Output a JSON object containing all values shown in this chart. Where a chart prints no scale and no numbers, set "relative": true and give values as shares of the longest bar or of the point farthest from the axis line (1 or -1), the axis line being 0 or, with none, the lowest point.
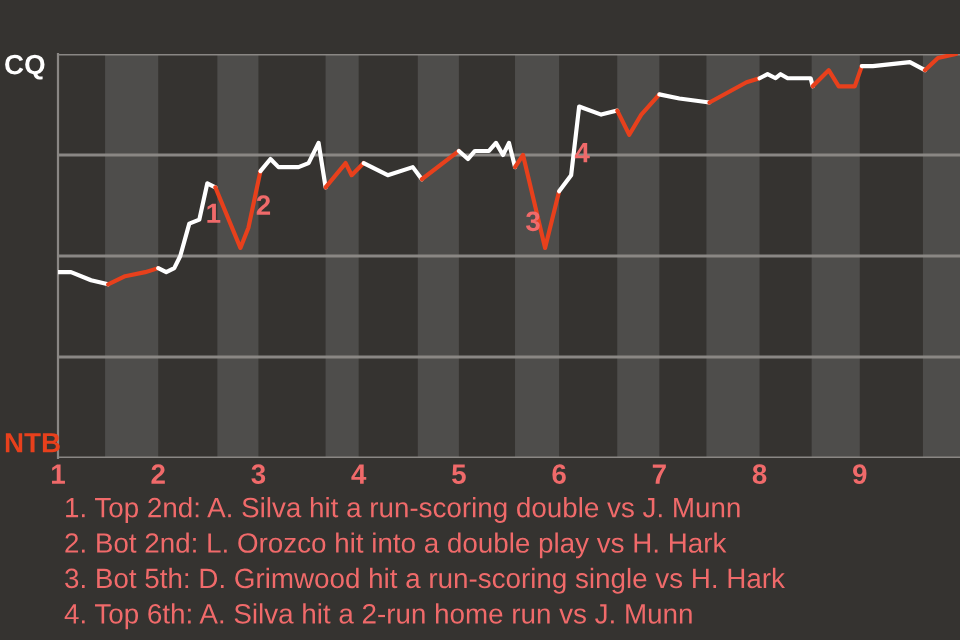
{
  "chart_data": {
    "type": "line",
    "relative": true,
    "xlim": [
      1,
      10
    ],
    "xticks": [
      1,
      2,
      3,
      4,
      5,
      6,
      7,
      8,
      9
    ],
    "grid": "y",
    "series": [
      {
        "color": "#ffffff",
        "x": [
          1,
          1.13,
          1.33,
          1.5
        ],
        "values": [
          0.46,
          0.46,
          0.44,
          0.43
        ]
      },
      {
        "color": "#e8401c",
        "x": [
          1.5,
          1.67,
          1.87,
          2
        ],
        "values": [
          0.43,
          0.45,
          0.46,
          0.47
        ]
      },
      {
        "color": "#ffffff",
        "x": [
          2,
          2.08,
          2.16,
          2.22,
          2.31,
          2.41,
          2.49,
          2.57
        ],
        "values": [
          0.47,
          0.46,
          0.47,
          0.5,
          0.58,
          0.59,
          0.68,
          0.67
        ]
      },
      {
        "color": "#e8401c",
        "x": [
          2.57,
          2.82,
          2.9,
          3.02
        ],
        "values": [
          0.67,
          0.52,
          0.57,
          0.71
        ]
      },
      {
        "color": "#ffffff",
        "x": [
          3.02,
          3.12,
          3.2,
          3.4,
          3.5,
          3.6,
          3.67
        ],
        "values": [
          0.71,
          0.74,
          0.72,
          0.72,
          0.73,
          0.78,
          0.67
        ]
      },
      {
        "color": "#e8401c",
        "x": [
          3.67,
          3.87,
          3.93,
          4.05
        ],
        "values": [
          0.67,
          0.73,
          0.7,
          0.73
        ]
      },
      {
        "color": "#ffffff",
        "x": [
          4.05,
          4.29,
          4.54,
          4.63
        ],
        "values": [
          0.73,
          0.7,
          0.72,
          0.69
        ]
      },
      {
        "color": "#e8401c",
        "x": [
          4.63,
          5
        ],
        "values": [
          0.69,
          0.76
        ]
      },
      {
        "color": "#ffffff",
        "x": [
          5,
          5.09,
          5.16,
          5.3,
          5.37,
          5.44,
          5.5,
          5.56
        ],
        "values": [
          0.76,
          0.74,
          0.76,
          0.76,
          0.78,
          0.75,
          0.78,
          0.72
        ]
      },
      {
        "color": "#e8401c",
        "x": [
          5.56,
          5.64,
          5.86,
          6
        ],
        "values": [
          0.72,
          0.75,
          0.52,
          0.66
        ]
      },
      {
        "color": "#ffffff",
        "x": [
          6,
          6.12,
          6.2,
          6.42,
          6.58
        ],
        "values": [
          0.66,
          0.7,
          0.87,
          0.85,
          0.86
        ]
      },
      {
        "color": "#e8401c",
        "x": [
          6.58,
          6.7,
          6.82,
          7
        ],
        "values": [
          0.86,
          0.8,
          0.85,
          0.9
        ]
      },
      {
        "color": "#ffffff",
        "x": [
          7,
          7.2,
          7.5
        ],
        "values": [
          0.9,
          0.89,
          0.88
        ]
      },
      {
        "color": "#e8401c",
        "x": [
          7.5,
          7.87,
          8
        ],
        "values": [
          0.88,
          0.93,
          0.94
        ]
      },
      {
        "color": "#ffffff",
        "x": [
          8,
          8.08,
          8.16,
          8.21,
          8.28,
          8.51,
          8.53
        ],
        "values": [
          0.94,
          0.95,
          0.94,
          0.95,
          0.94,
          0.94,
          0.92
        ]
      },
      {
        "color": "#e8401c",
        "x": [
          8.53,
          8.69,
          8.79,
          8.95,
          9.02
        ],
        "values": [
          0.92,
          0.96,
          0.92,
          0.92,
          0.97
        ]
      },
      {
        "color": "#ffffff",
        "x": [
          9.02,
          9.13,
          9.5,
          9.65
        ],
        "values": [
          0.97,
          0.97,
          0.98,
          0.96
        ]
      },
      {
        "color": "#e8401c",
        "x": [
          9.65,
          9.78,
          9.96
        ],
        "values": [
          0.96,
          0.99,
          1.0
        ]
      }
    ],
    "bands": [
      {
        "axis": "x",
        "from": 1.47,
        "to": 2,
        "color": "#4e4d4b"
      },
      {
        "axis": "x",
        "from": 2.59,
        "to": 3,
        "color": "#4e4d4b"
      },
      {
        "axis": "x",
        "from": 3.67,
        "to": 4,
        "color": "#4e4d4b"
      },
      {
        "axis": "x",
        "from": 4.59,
        "to": 5,
        "color": "#4e4d4b"
      },
      {
        "axis": "x",
        "from": 5.56,
        "to": 6,
        "color": "#4e4d4b"
      },
      {
        "axis": "x",
        "from": 6.58,
        "to": 7,
        "color": "#4e4d4b"
      },
      {
        "axis": "x",
        "from": 7.47,
        "to": 8,
        "color": "#4e4d4b"
      },
      {
        "axis": "x",
        "from": 8.52,
        "to": 9,
        "color": "#4e4d4b"
      },
      {
        "axis": "x",
        "from": 9.63,
        "to": 10,
        "color": "#4e4d4b"
      }
    ],
    "annotations": [
      "CQ",
      "NTB",
      {
        "text": "1",
        "x": 2.55,
        "y": 0.6
      },
      {
        "text": "2",
        "x": 3.05,
        "y": 0.62
      },
      {
        "text": "3",
        "x": 5.74,
        "y": 0.58
      },
      {
        "text": "4",
        "x": 6.23,
        "y": 0.75
      },
      "1. Top 2nd: A. Silva hit a run-scoring double vs J. Munn",
      "2. Bot 2nd: L. Orozco hit into a double play vs H. Hark",
      "3. Bot 5th: D. Grimwood hit a run-scoring single vs H. Hark",
      "4. Top 6th: A. Silva hit a 2-run home run vs J. Munn"
    ]
  }
}
